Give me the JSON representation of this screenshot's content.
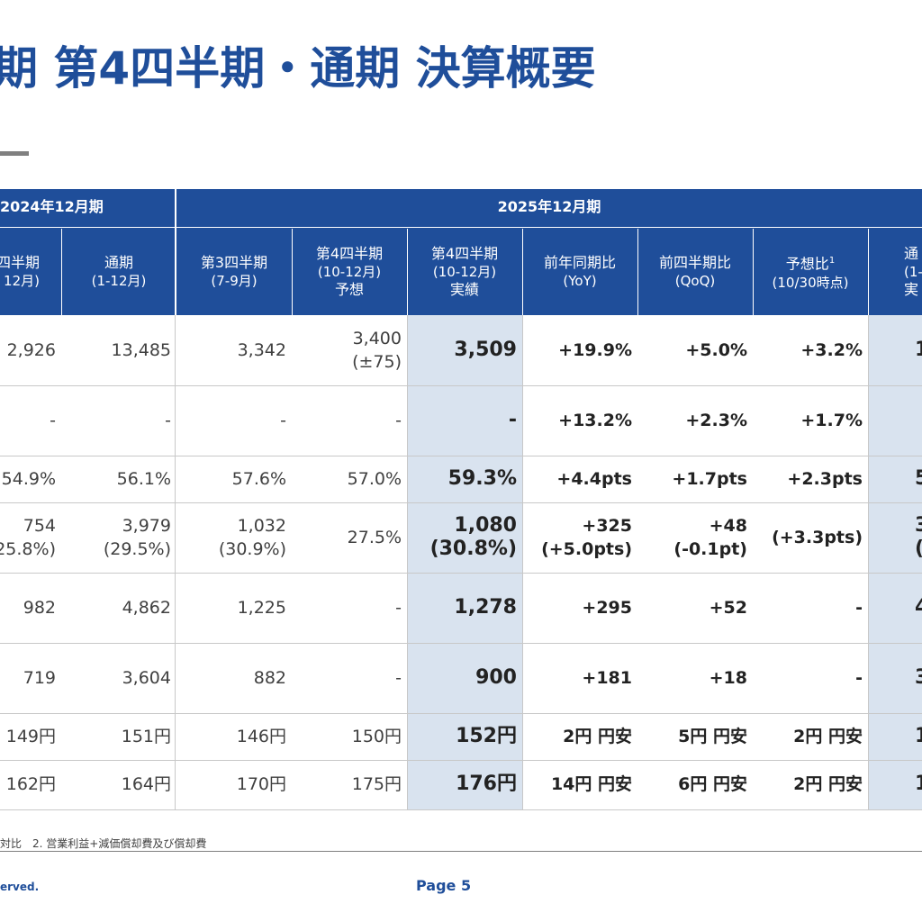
{
  "title": "期 第4四半期・通期 決算概要",
  "header": {
    "group_2024": "2024年12月期",
    "group_2025": "2025年12月期",
    "columns": [
      {
        "l1": "四半期",
        "l2": "12月)",
        "l3": ""
      },
      {
        "l1": "通期",
        "l2": "(1-12月)",
        "l3": ""
      },
      {
        "l1": "第3四半期",
        "l2": "(7-9月)",
        "l3": ""
      },
      {
        "l1": "第4四半期",
        "l2": "(10-12月)",
        "l3": "予想"
      },
      {
        "l1": "第4四半期",
        "l2": "(10-12月)",
        "l3": "実績"
      },
      {
        "l1": "前年同期比",
        "l2": "(YoY)",
        "l3": ""
      },
      {
        "l1": "前四半期比",
        "l2": "(QoQ)",
        "l3": ""
      },
      {
        "l1": "予想比",
        "sup": "1",
        "l2": "(10/30時点)",
        "l3": ""
      },
      {
        "l1": "通",
        "l2": "(1-1",
        "l3": "実"
      }
    ]
  },
  "rows": [
    [
      "2,926",
      "13,485",
      "3,342",
      "3,400\n(±75)",
      "3,509",
      "+19.9%",
      "+5.0%",
      "+3.2%",
      "1"
    ],
    [
      "-",
      "-",
      "-",
      "-",
      "-",
      "+13.2%",
      "+2.3%",
      "+1.7%",
      ""
    ],
    [
      "54.9%",
      "56.1%",
      "57.6%",
      "57.0%",
      "59.3%",
      "+4.4pts",
      "+1.7pts",
      "+2.3pts",
      "5"
    ],
    [
      "754\n25.8%)",
      "3,979\n(29.5%)",
      "1,032\n(30.9%)",
      "27.5%",
      "1,080\n(30.8%)",
      "+325\n(+5.0pts)",
      "+48\n(-0.1pt)",
      "(+3.3pts)",
      "3\n(29"
    ],
    [
      "982",
      "4,862",
      "1,225",
      "-",
      "1,278",
      "+295",
      "+52",
      "-",
      "4"
    ],
    [
      "719",
      "3,604",
      "882",
      "-",
      "900",
      "+181",
      "+18",
      "-",
      "3"
    ],
    [
      "149円",
      "151円",
      "146円",
      "150円",
      "152円",
      "2円 円安",
      "5円 円安",
      "2円 円安",
      "1"
    ],
    [
      "162円",
      "164円",
      "170円",
      "175円",
      "176円",
      "14円 円安",
      "6円 円安",
      "2円 円安",
      "1"
    ]
  ],
  "footnote": "対比　2. 営業利益+減価償却費及び償却費",
  "copyright": "erved.",
  "page_label": "Page 5",
  "colors": {
    "brand": "#1f4e9a",
    "highlight": "#d9e3ef"
  }
}
